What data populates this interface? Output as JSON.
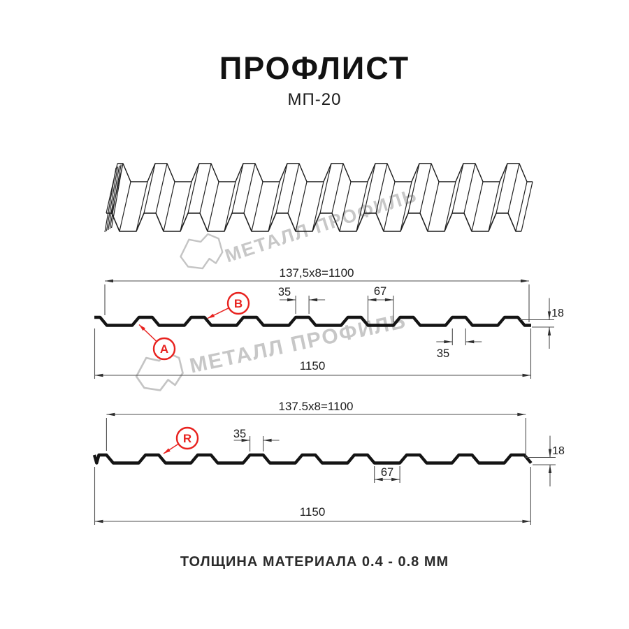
{
  "title": "ПРОФЛИСТ",
  "subtitle": "МП-20",
  "note": "ТОЛЩИНА МАТЕРИАЛА 0.4 - 0.8 ММ",
  "watermark": {
    "text": "МЕТАЛЛ ПРОФИЛЬ"
  },
  "colors": {
    "red": "#e8221f",
    "profile": "#141414",
    "dim_line": "#4d4d4d",
    "watermark": "#c7c7c7"
  },
  "diagram1": {
    "dim_top": "137,5x8=1100",
    "dim_rib_width": "35",
    "dim_flat_width": "67",
    "dim_rib_width_bottom": "35",
    "dim_height": "18",
    "dim_total": "1150",
    "labels": {
      "a": "A",
      "b": "B"
    }
  },
  "diagram2": {
    "dim_top": "137.5x8=1100",
    "dim_rib_width": "35",
    "dim_flat_width": "67",
    "dim_height": "18",
    "dim_total": "1150",
    "labels": {
      "r": "R"
    }
  }
}
